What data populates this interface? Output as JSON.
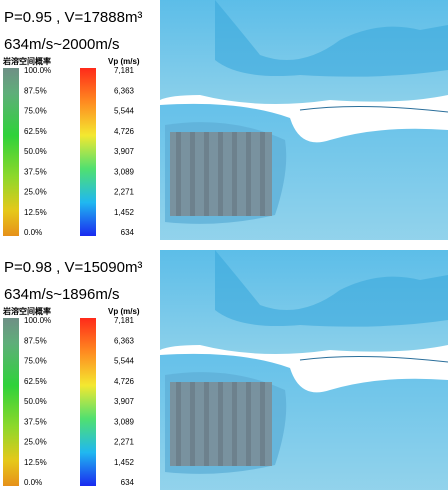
{
  "panels": [
    {
      "title": "P=0.95 , V=17888m³",
      "range": "634m/s~2000m/s",
      "prob_colorbar": {
        "label": "岩溶空间概率",
        "ticks": [
          "100.0%",
          "87.5%",
          "75.0%",
          "62.5%",
          "50.0%",
          "37.5%",
          "25.0%",
          "12.5%",
          "0.0%"
        ]
      },
      "vp_colorbar": {
        "label": "Vp (m/s)",
        "ticks": [
          "7,181",
          "6,363",
          "5,544",
          "4,726",
          "3,907",
          "3,089",
          "2,271",
          "1,452",
          "634"
        ]
      }
    },
    {
      "title": "P=0.98 , V=15090m³",
      "range": "634m/s~1896m/s",
      "prob_colorbar": {
        "label": "岩溶空间概率",
        "ticks": [
          "100.0%",
          "87.5%",
          "75.0%",
          "62.5%",
          "50.0%",
          "37.5%",
          "25.0%",
          "12.5%",
          "0.0%"
        ]
      },
      "vp_colorbar": {
        "label": "Vp (m/s)",
        "ticks": [
          "7,181",
          "6,363",
          "5,544",
          "4,726",
          "3,907",
          "3,089",
          "2,271",
          "1,452",
          "634"
        ]
      }
    }
  ]
}
